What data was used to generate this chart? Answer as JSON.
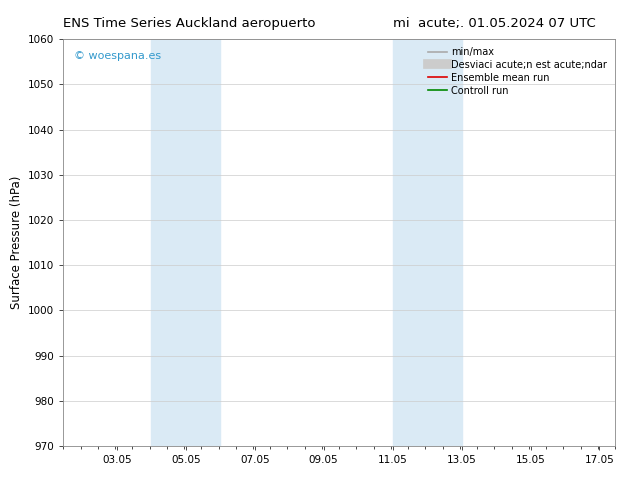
{
  "title_left": "ENS Time Series Auckland aeropuerto",
  "title_right": "mi  acute;. 01.05.2024 07 UTC",
  "ylabel": "Surface Pressure (hPa)",
  "ylim": [
    970,
    1060
  ],
  "yticks": [
    970,
    980,
    990,
    1000,
    1010,
    1020,
    1030,
    1040,
    1050,
    1060
  ],
  "xlim_start": 1.5,
  "xlim_end": 17.5,
  "xtick_positions": [
    3.05,
    5.05,
    7.05,
    9.05,
    11.05,
    13.05,
    15.05,
    17.05
  ],
  "xtick_labels": [
    "03.05",
    "05.05",
    "07.05",
    "09.05",
    "11.05",
    "13.05",
    "15.05",
    "17.05"
  ],
  "shaded_regions": [
    {
      "x_start": 4.05,
      "x_end": 6.05
    },
    {
      "x_start": 11.05,
      "x_end": 13.05
    }
  ],
  "shaded_color": "#daeaf5",
  "watermark_text": "© woespana.es",
  "watermark_color": "#3399cc",
  "legend_entries": [
    {
      "label": "min/max",
      "color": "#aaaaaa",
      "lw": 1.2
    },
    {
      "label": "Desviaci acute;n est acute;ndar",
      "color": "#cccccc",
      "lw": 7
    },
    {
      "label": "Ensemble mean run",
      "color": "#dd0000",
      "lw": 1.2
    },
    {
      "label": "Controll run",
      "color": "#008800",
      "lw": 1.2
    }
  ],
  "background_color": "#ffffff",
  "grid_color": "#cccccc",
  "title_fontsize": 9.5,
  "ylabel_fontsize": 8.5,
  "tick_fontsize": 7.5,
  "watermark_fontsize": 8,
  "legend_fontsize": 7
}
